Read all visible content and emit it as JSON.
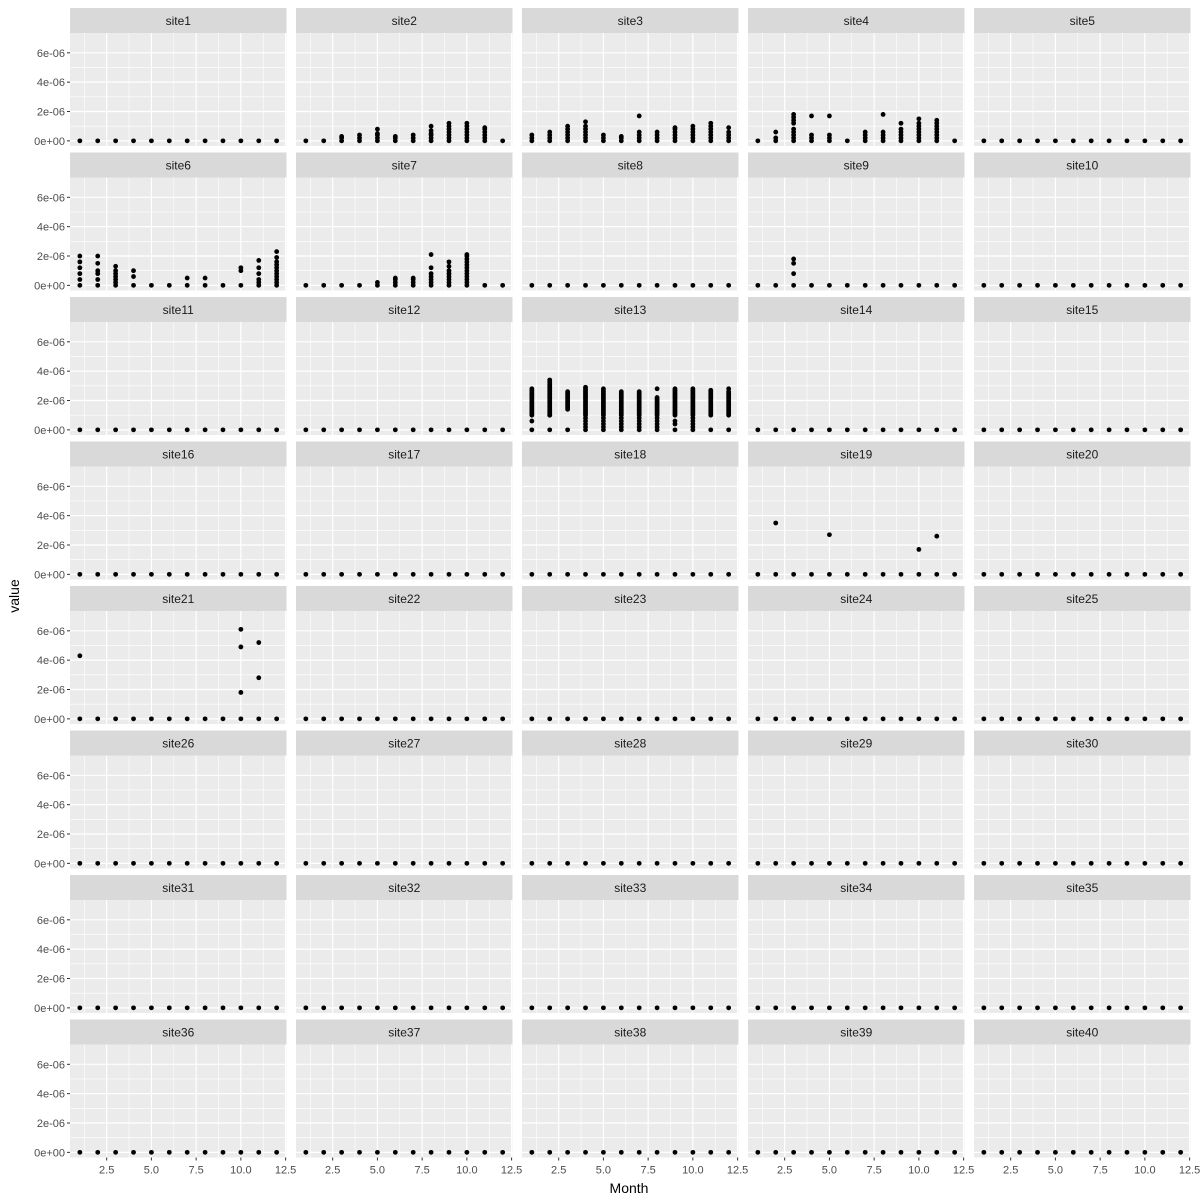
{
  "chart_data": {
    "type": "scatter",
    "xlabel": "Month",
    "ylabel": "value",
    "xlim": [
      0.45,
      12.55
    ],
    "ylim": [
      -3.5e-07,
      7.35e-06
    ],
    "x_ticks": [
      2.5,
      5.0,
      7.5,
      10.0,
      12.5
    ],
    "x_tick_labels": [
      "2.5",
      "5.0",
      "7.5",
      "10.0",
      "12.5"
    ],
    "y_ticks": [
      0,
      2e-06,
      4e-06,
      6e-06
    ],
    "y_tick_labels": [
      "0e+00",
      "2e-06",
      "4e-06",
      "6e-06"
    ],
    "ncol": 5,
    "baseline_months": [
      1,
      2,
      3,
      4,
      5,
      6,
      7,
      8,
      9,
      10,
      11,
      12
    ],
    "baseline_value": 0,
    "grid": true,
    "colors": {
      "panel": "#ebebeb",
      "strip": "#d9d9d9",
      "grid": "#ffffff",
      "point": "#000000"
    },
    "facets": [
      {
        "label": "site1",
        "points": []
      },
      {
        "label": "site2",
        "points": [
          [
            3,
            2e-07
          ],
          [
            3,
            3e-07
          ],
          [
            4,
            2e-07
          ],
          [
            4,
            4e-07
          ],
          [
            5,
            2e-07
          ],
          [
            5,
            4e-07
          ],
          [
            5,
            5e-07
          ],
          [
            5,
            8e-07
          ],
          [
            6,
            2e-07
          ],
          [
            6,
            3e-07
          ],
          [
            7,
            2e-07
          ],
          [
            7,
            4e-07
          ],
          [
            8,
            2e-07
          ],
          [
            8,
            4e-07
          ],
          [
            8,
            5e-07
          ],
          [
            8,
            7e-07
          ],
          [
            8,
            1e-06
          ],
          [
            9,
            2e-07
          ],
          [
            9,
            4e-07
          ],
          [
            9,
            6e-07
          ],
          [
            9,
            8e-07
          ],
          [
            9,
            1e-06
          ],
          [
            9,
            1.2e-06
          ],
          [
            10,
            2e-07
          ],
          [
            10,
            4e-07
          ],
          [
            10,
            6e-07
          ],
          [
            10,
            8e-07
          ],
          [
            10,
            1e-06
          ],
          [
            10,
            1.2e-06
          ],
          [
            11,
            2e-07
          ],
          [
            11,
            4e-07
          ],
          [
            11,
            6e-07
          ],
          [
            11,
            8e-07
          ],
          [
            11,
            9e-07
          ]
        ]
      },
      {
        "label": "site3",
        "points": [
          [
            1,
            2e-07
          ],
          [
            1,
            4e-07
          ],
          [
            2,
            2e-07
          ],
          [
            2,
            4e-07
          ],
          [
            2,
            6e-07
          ],
          [
            3,
            2e-07
          ],
          [
            3,
            4e-07
          ],
          [
            3,
            6e-07
          ],
          [
            3,
            8e-07
          ],
          [
            3,
            1e-06
          ],
          [
            4,
            2e-07
          ],
          [
            4,
            4e-07
          ],
          [
            4,
            6e-07
          ],
          [
            4,
            8e-07
          ],
          [
            4,
            1e-06
          ],
          [
            4,
            1.3e-06
          ],
          [
            5,
            2e-07
          ],
          [
            5,
            4e-07
          ],
          [
            6,
            2e-07
          ],
          [
            6,
            3e-07
          ],
          [
            7,
            2e-07
          ],
          [
            7,
            4e-07
          ],
          [
            7,
            6e-07
          ],
          [
            7,
            1.7e-06
          ],
          [
            8,
            2e-07
          ],
          [
            8,
            4e-07
          ],
          [
            8,
            6e-07
          ],
          [
            9,
            2e-07
          ],
          [
            9,
            4e-07
          ],
          [
            9,
            6e-07
          ],
          [
            9,
            8e-07
          ],
          [
            9,
            9e-07
          ],
          [
            10,
            2e-07
          ],
          [
            10,
            4e-07
          ],
          [
            10,
            6e-07
          ],
          [
            10,
            8e-07
          ],
          [
            10,
            1e-06
          ],
          [
            11,
            2e-07
          ],
          [
            11,
            4e-07
          ],
          [
            11,
            6e-07
          ],
          [
            11,
            8e-07
          ],
          [
            11,
            1e-06
          ],
          [
            11,
            1.2e-06
          ],
          [
            12,
            2e-07
          ],
          [
            12,
            4e-07
          ],
          [
            12,
            6e-07
          ],
          [
            12,
            9e-07
          ]
        ]
      },
      {
        "label": "site4",
        "points": [
          [
            2,
            2e-07
          ],
          [
            2,
            6e-07
          ],
          [
            3,
            2e-07
          ],
          [
            3,
            4e-07
          ],
          [
            3,
            6e-07
          ],
          [
            3,
            8e-07
          ],
          [
            3,
            1.2e-06
          ],
          [
            3,
            1.4e-06
          ],
          [
            3,
            1.6e-06
          ],
          [
            3,
            1.8e-06
          ],
          [
            4,
            2e-07
          ],
          [
            4,
            4e-07
          ],
          [
            4,
            1.7e-06
          ],
          [
            5,
            2e-07
          ],
          [
            5,
            4e-07
          ],
          [
            5,
            1.7e-06
          ],
          [
            7,
            2e-07
          ],
          [
            7,
            4e-07
          ],
          [
            7,
            6e-07
          ],
          [
            8,
            2e-07
          ],
          [
            8,
            4e-07
          ],
          [
            8,
            6e-07
          ],
          [
            8,
            1.8e-06
          ],
          [
            9,
            2e-07
          ],
          [
            9,
            4e-07
          ],
          [
            9,
            6e-07
          ],
          [
            9,
            8e-07
          ],
          [
            9,
            1.2e-06
          ],
          [
            10,
            2e-07
          ],
          [
            10,
            4e-07
          ],
          [
            10,
            6e-07
          ],
          [
            10,
            8e-07
          ],
          [
            10,
            1e-06
          ],
          [
            10,
            1.2e-06
          ],
          [
            10,
            1.5e-06
          ],
          [
            11,
            2e-07
          ],
          [
            11,
            4e-07
          ],
          [
            11,
            6e-07
          ],
          [
            11,
            8e-07
          ],
          [
            11,
            1e-06
          ],
          [
            11,
            1.2e-06
          ],
          [
            11,
            1.4e-06
          ]
        ]
      },
      {
        "label": "site5",
        "points": []
      },
      {
        "label": "site6",
        "points": [
          [
            1,
            4e-07
          ],
          [
            1,
            8e-07
          ],
          [
            1,
            1.2e-06
          ],
          [
            1,
            1.6e-06
          ],
          [
            1,
            2e-06
          ],
          [
            2,
            4e-07
          ],
          [
            2,
            8e-07
          ],
          [
            2,
            1e-06
          ],
          [
            2,
            1.5e-06
          ],
          [
            2,
            2e-06
          ],
          [
            3,
            2e-07
          ],
          [
            3,
            4e-07
          ],
          [
            3,
            6e-07
          ],
          [
            3,
            8e-07
          ],
          [
            3,
            1e-06
          ],
          [
            3,
            1.3e-06
          ],
          [
            4,
            6e-07
          ],
          [
            4,
            1e-06
          ],
          [
            7,
            5e-07
          ],
          [
            8,
            5e-07
          ],
          [
            10,
            1e-06
          ],
          [
            10,
            1.2e-06
          ],
          [
            11,
            2e-07
          ],
          [
            11,
            4e-07
          ],
          [
            11,
            8e-07
          ],
          [
            11,
            1.2e-06
          ],
          [
            11,
            1.7e-06
          ],
          [
            12,
            2e-07
          ],
          [
            12,
            4e-07
          ],
          [
            12,
            6e-07
          ],
          [
            12,
            8e-07
          ],
          [
            12,
            1e-06
          ],
          [
            12,
            1.2e-06
          ],
          [
            12,
            1.4e-06
          ],
          [
            12,
            1.6e-06
          ],
          [
            12,
            1.9e-06
          ],
          [
            12,
            2.3e-06
          ]
        ]
      },
      {
        "label": "site7",
        "points": [
          [
            5,
            2e-07
          ],
          [
            6,
            2e-07
          ],
          [
            6,
            4e-07
          ],
          [
            6,
            5e-07
          ],
          [
            7,
            2e-07
          ],
          [
            7,
            4e-07
          ],
          [
            7,
            5e-07
          ],
          [
            8,
            2e-07
          ],
          [
            8,
            4e-07
          ],
          [
            8,
            6e-07
          ],
          [
            8,
            8e-07
          ],
          [
            8,
            1.2e-06
          ],
          [
            8,
            2.1e-06
          ],
          [
            9,
            2e-07
          ],
          [
            9,
            4e-07
          ],
          [
            9,
            6e-07
          ],
          [
            9,
            8e-07
          ],
          [
            9,
            1e-06
          ],
          [
            9,
            1.3e-06
          ],
          [
            9,
            1.6e-06
          ],
          [
            10,
            2e-07
          ],
          [
            10,
            4e-07
          ],
          [
            10,
            6e-07
          ],
          [
            10,
            8e-07
          ],
          [
            10,
            1e-06
          ],
          [
            10,
            1.2e-06
          ],
          [
            10,
            1.4e-06
          ],
          [
            10,
            1.6e-06
          ],
          [
            10,
            1.8e-06
          ],
          [
            10,
            2e-06
          ],
          [
            10,
            2.1e-06
          ]
        ]
      },
      {
        "label": "site8",
        "points": []
      },
      {
        "label": "site9",
        "points": [
          [
            3,
            8e-07
          ],
          [
            3,
            1.5e-06
          ],
          [
            3,
            1.8e-06
          ]
        ]
      },
      {
        "label": "site10",
        "points": []
      },
      {
        "label": "site11",
        "points": []
      },
      {
        "label": "site12",
        "points": []
      },
      {
        "label": "site13",
        "range_points": [
          [
            1,
            1e-06,
            2.8e-06
          ],
          [
            2,
            1e-06,
            3.4e-06
          ],
          [
            3,
            1.4e-06,
            2.6e-06
          ],
          [
            4,
            1e-06,
            2.9e-06
          ],
          [
            5,
            1e-06,
            2.8e-06
          ],
          [
            6,
            1e-06,
            2.6e-06
          ],
          [
            7,
            1e-06,
            2.6e-06
          ],
          [
            8,
            1e-06,
            2.2e-06
          ],
          [
            9,
            1e-06,
            2.8e-06
          ],
          [
            10,
            1e-06,
            2.8e-06
          ],
          [
            11,
            1e-06,
            2.6e-06
          ],
          [
            12,
            1e-06,
            2.6e-06
          ]
        ],
        "points": [
          [
            1,
            6e-07
          ],
          [
            2,
            1e-06
          ],
          [
            4,
            2e-07
          ],
          [
            4,
            4e-07
          ],
          [
            4,
            6e-07
          ],
          [
            4,
            8e-07
          ],
          [
            5,
            2e-07
          ],
          [
            5,
            4e-07
          ],
          [
            5,
            6e-07
          ],
          [
            5,
            8e-07
          ],
          [
            6,
            2e-07
          ],
          [
            6,
            4e-07
          ],
          [
            6,
            6e-07
          ],
          [
            6,
            8e-07
          ],
          [
            7,
            2e-07
          ],
          [
            7,
            4e-07
          ],
          [
            7,
            6e-07
          ],
          [
            7,
            8e-07
          ],
          [
            8,
            2e-07
          ],
          [
            8,
            4e-07
          ],
          [
            8,
            6e-07
          ],
          [
            8,
            8e-07
          ],
          [
            8,
            2.8e-06
          ],
          [
            9,
            4e-07
          ],
          [
            9,
            6e-07
          ],
          [
            10,
            2e-07
          ],
          [
            10,
            4e-07
          ],
          [
            10,
            6e-07
          ],
          [
            10,
            8e-07
          ],
          [
            11,
            2.7e-06
          ],
          [
            12,
            2.8e-06
          ]
        ]
      },
      {
        "label": "site14",
        "points": []
      },
      {
        "label": "site15",
        "points": []
      },
      {
        "label": "site16",
        "points": []
      },
      {
        "label": "site17",
        "points": []
      },
      {
        "label": "site18",
        "points": []
      },
      {
        "label": "site19",
        "points": [
          [
            2,
            3.5e-06
          ],
          [
            5,
            2.7e-06
          ],
          [
            10,
            1.7e-06
          ],
          [
            11,
            2.6e-06
          ]
        ]
      },
      {
        "label": "site20",
        "points": []
      },
      {
        "label": "site21",
        "points": [
          [
            1,
            4.3e-06
          ],
          [
            10,
            1.8e-06
          ],
          [
            10,
            4.9e-06
          ],
          [
            10,
            6.1e-06
          ],
          [
            11,
            2.8e-06
          ],
          [
            11,
            5.2e-06
          ]
        ]
      },
      {
        "label": "site22",
        "points": []
      },
      {
        "label": "site23",
        "points": []
      },
      {
        "label": "site24",
        "points": []
      },
      {
        "label": "site25",
        "points": []
      },
      {
        "label": "site26",
        "points": []
      },
      {
        "label": "site27",
        "points": []
      },
      {
        "label": "site28",
        "points": []
      },
      {
        "label": "site29",
        "points": []
      },
      {
        "label": "site30",
        "points": []
      },
      {
        "label": "site31",
        "points": []
      },
      {
        "label": "site32",
        "points": []
      },
      {
        "label": "site33",
        "points": []
      },
      {
        "label": "site34",
        "points": []
      },
      {
        "label": "site35",
        "points": []
      },
      {
        "label": "site36",
        "points": []
      },
      {
        "label": "site37",
        "points": []
      },
      {
        "label": "site38",
        "points": []
      },
      {
        "label": "site39",
        "points": []
      },
      {
        "label": "site40",
        "points": []
      }
    ]
  }
}
